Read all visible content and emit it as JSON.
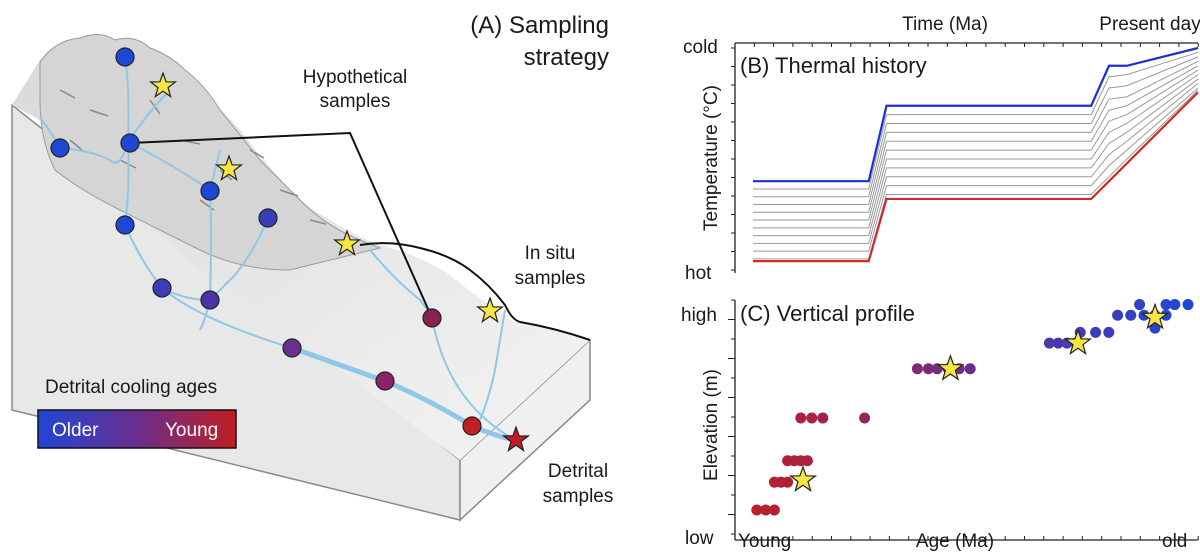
{
  "panel_a": {
    "title_line1": "(A) Sampling",
    "title_line2": "strategy",
    "hypothetical_line1": "Hypothetical",
    "hypothetical_line2": "samples",
    "insitu_line1": "In situ",
    "insitu_line2": "samples",
    "detrital_line1": "Detrital",
    "detrital_line2": "samples",
    "legend_title": "Detrital cooling ages",
    "legend_older": "Older",
    "legend_young": "Young",
    "colors": {
      "older": "#1f47d6",
      "mid": "#6a2e8e",
      "young": "#c01e22",
      "star": "#f5e642",
      "river": "#8ec7e8"
    }
  },
  "panel_b": {
    "title": "(B) Thermal history",
    "top_label": "Time (Ma)",
    "right_label": "Present day",
    "ylabel": "Temperature (°C)",
    "y_top": "cold",
    "y_bottom": "hot",
    "colors": {
      "upper": "#1c2fd0",
      "lower": "#d02a2a",
      "mid": "#9a9a9a"
    }
  },
  "panel_c": {
    "title": "(C) Vertical profile",
    "ylabel": "Elevation (m)",
    "xlabel": "Age (Ma)",
    "y_top": "high",
    "y_bottom": "low",
    "x_left": "Young",
    "x_right": "old"
  },
  "chart_data": [
    {
      "type": "line",
      "title": "(B) Thermal history",
      "xlabel": "Time (Ma)",
      "ylabel": "Temperature (°C)",
      "ylim": [
        "hot",
        "cold"
      ],
      "note": "t-T paths from oldest (left) to present day (right); upper path in blue, lower path in red, intermediate paths grey",
      "x": [
        0,
        0.26,
        0.3,
        0.76,
        0.8,
        0.84,
        1.0
      ],
      "series": [
        {
          "values": [
            0.4,
            0.4,
            0.74,
            0.74,
            0.92,
            0.92,
            1.0
          ]
        },
        {
          "values": [
            0.365,
            0.365,
            0.7,
            0.7,
            0.87,
            0.88,
            0.98
          ]
        },
        {
          "values": [
            0.33,
            0.33,
            0.66,
            0.66,
            0.82,
            0.83,
            0.96
          ]
        },
        {
          "values": [
            0.295,
            0.295,
            0.62,
            0.62,
            0.77,
            0.78,
            0.94
          ]
        },
        {
          "values": [
            0.26,
            0.26,
            0.58,
            0.58,
            0.72,
            0.74,
            0.92
          ]
        },
        {
          "values": [
            0.225,
            0.225,
            0.54,
            0.54,
            0.67,
            0.7,
            0.9
          ]
        },
        {
          "values": [
            0.19,
            0.19,
            0.5,
            0.5,
            0.62,
            0.66,
            0.88
          ]
        },
        {
          "values": [
            0.155,
            0.155,
            0.46,
            0.46,
            0.57,
            0.62,
            0.86
          ]
        },
        {
          "values": [
            0.12,
            0.12,
            0.42,
            0.42,
            0.52,
            0.58,
            0.84
          ]
        },
        {
          "values": [
            0.085,
            0.085,
            0.38,
            0.38,
            0.47,
            0.54,
            0.82
          ]
        },
        {
          "values": [
            0.05,
            0.05,
            0.34,
            0.34,
            0.42,
            0.5,
            0.81
          ]
        },
        {
          "values": [
            0.04,
            0.04,
            0.32,
            0.32,
            0.4,
            0.48,
            0.8
          ]
        }
      ]
    },
    {
      "type": "scatter",
      "title": "(C) Vertical profile",
      "xlabel": "Age (Ma)",
      "ylabel": "Elevation (m)",
      "xlim": [
        "Young",
        "old"
      ],
      "ylim": [
        "low",
        "high"
      ],
      "points": [
        [
          0.02,
          0.0
        ],
        [
          0.04,
          0.0
        ],
        [
          0.06,
          0.0
        ],
        [
          0.06,
          0.13
        ],
        [
          0.075,
          0.13
        ],
        [
          0.09,
          0.13
        ],
        [
          0.09,
          0.23
        ],
        [
          0.105,
          0.23
        ],
        [
          0.12,
          0.23
        ],
        [
          0.135,
          0.23
        ],
        [
          0.12,
          0.43
        ],
        [
          0.145,
          0.43
        ],
        [
          0.17,
          0.43
        ],
        [
          0.265,
          0.43
        ],
        [
          0.385,
          0.66
        ],
        [
          0.41,
          0.66
        ],
        [
          0.43,
          0.66
        ],
        [
          0.455,
          0.66
        ],
        [
          0.48,
          0.66
        ],
        [
          0.505,
          0.66
        ],
        [
          0.685,
          0.78
        ],
        [
          0.705,
          0.78
        ],
        [
          0.725,
          0.78
        ],
        [
          0.745,
          0.78
        ],
        [
          0.755,
          0.83
        ],
        [
          0.79,
          0.83
        ],
        [
          0.82,
          0.83
        ],
        [
          0.84,
          0.91
        ],
        [
          0.87,
          0.91
        ],
        [
          0.9,
          0.91
        ],
        [
          0.925,
          0.91
        ],
        [
          0.95,
          0.91
        ],
        [
          0.89,
          0.96
        ],
        [
          0.95,
          0.96
        ],
        [
          0.97,
          0.96
        ],
        [
          1.0,
          0.96
        ],
        [
          0.925,
          0.85
        ]
      ],
      "stars": [
        [
          0.125,
          0.14
        ],
        [
          0.46,
          0.66
        ],
        [
          0.75,
          0.78
        ],
        [
          0.925,
          0.9
        ]
      ]
    }
  ]
}
